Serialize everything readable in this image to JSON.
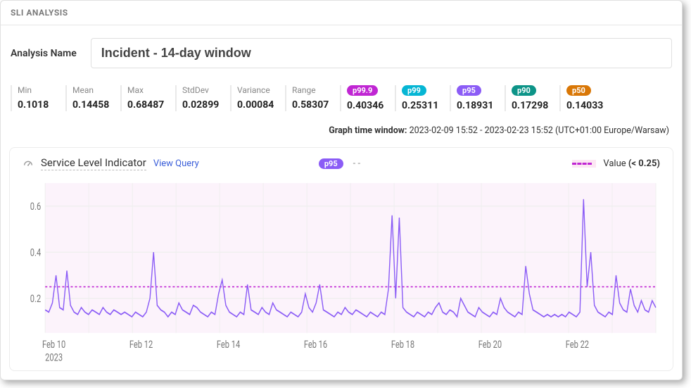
{
  "header": {
    "title": "SLI ANALYSIS"
  },
  "analysis": {
    "label": "Analysis Name",
    "value": "Incident - 14-day window"
  },
  "stats": [
    {
      "label": "Min",
      "value": "0.1018"
    },
    {
      "label": "Mean",
      "value": "0.14458"
    },
    {
      "label": "Max",
      "value": "0.68487"
    },
    {
      "label": "StdDev",
      "value": "0.02899"
    },
    {
      "label": "Variance",
      "value": "0.00084"
    },
    {
      "label": "Range",
      "value": "0.58307"
    },
    {
      "label": "p99.9",
      "value": "0.40346",
      "pill_color": "#c026d3"
    },
    {
      "label": "p99",
      "value": "0.25311",
      "pill_color": "#06b6d4"
    },
    {
      "label": "p95",
      "value": "0.18931",
      "pill_color": "#8b5cf6"
    },
    {
      "label": "p90",
      "value": "0.17298",
      "pill_color": "#0d9488"
    },
    {
      "label": "p50",
      "value": "0.14033",
      "pill_color": "#d97706"
    }
  ],
  "time_window": {
    "label": "Graph time window:",
    "value": "2023-02-09 15:52 - 2023-02-23 15:52 (UTC+01:00 Europe/Warsaw)"
  },
  "chart": {
    "title": "Service Level Indicator",
    "view_query": "View Query",
    "badge": "p95",
    "badge_color": "#8b5cf6",
    "value_dashes": "- -",
    "legend_label": "Value",
    "legend_condition": "(< 0.25)",
    "threshold": 0.25,
    "y_ticks": [
      0.2,
      0.4,
      0.6
    ],
    "y_range": [
      0.05,
      0.7
    ],
    "x_labels": [
      "Feb 10",
      "Feb 12",
      "Feb 14",
      "Feb 16",
      "Feb 18",
      "Feb 20",
      "Feb 22"
    ],
    "x_sublabel": "2023",
    "colors": {
      "plot_bg": "#fcf3fb",
      "grid": "#efefef",
      "threshold_line": "#c026d3",
      "series_line": "#8b5cf6",
      "panel_bg": "#ffffff"
    },
    "series": [
      0.15,
      0.14,
      0.18,
      0.3,
      0.16,
      0.15,
      0.32,
      0.17,
      0.14,
      0.13,
      0.16,
      0.14,
      0.13,
      0.15,
      0.14,
      0.13,
      0.16,
      0.14,
      0.13,
      0.15,
      0.14,
      0.13,
      0.14,
      0.13,
      0.12,
      0.14,
      0.13,
      0.12,
      0.14,
      0.2,
      0.4,
      0.17,
      0.15,
      0.14,
      0.12,
      0.14,
      0.13,
      0.18,
      0.15,
      0.14,
      0.13,
      0.17,
      0.16,
      0.14,
      0.13,
      0.12,
      0.14,
      0.13,
      0.22,
      0.28,
      0.17,
      0.14,
      0.13,
      0.12,
      0.14,
      0.13,
      0.26,
      0.15,
      0.14,
      0.13,
      0.16,
      0.14,
      0.13,
      0.18,
      0.15,
      0.14,
      0.13,
      0.12,
      0.14,
      0.13,
      0.12,
      0.14,
      0.22,
      0.16,
      0.14,
      0.18,
      0.26,
      0.15,
      0.14,
      0.13,
      0.12,
      0.14,
      0.13,
      0.16,
      0.14,
      0.13,
      0.15,
      0.14,
      0.13,
      0.12,
      0.14,
      0.13,
      0.12,
      0.14,
      0.13,
      0.24,
      0.56,
      0.2,
      0.55,
      0.16,
      0.14,
      0.13,
      0.12,
      0.14,
      0.13,
      0.12,
      0.14,
      0.13,
      0.16,
      0.18,
      0.14,
      0.13,
      0.15,
      0.14,
      0.12,
      0.2,
      0.17,
      0.14,
      0.13,
      0.12,
      0.16,
      0.14,
      0.13,
      0.12,
      0.14,
      0.13,
      0.2,
      0.16,
      0.14,
      0.13,
      0.12,
      0.14,
      0.13,
      0.34,
      0.22,
      0.15,
      0.14,
      0.13,
      0.12,
      0.13,
      0.12,
      0.13,
      0.12,
      0.13,
      0.12,
      0.14,
      0.13,
      0.12,
      0.14,
      0.63,
      0.25,
      0.4,
      0.17,
      0.14,
      0.13,
      0.12,
      0.14,
      0.13,
      0.3,
      0.18,
      0.15,
      0.14,
      0.24,
      0.17,
      0.14,
      0.19,
      0.15,
      0.14,
      0.19,
      0.16
    ]
  }
}
